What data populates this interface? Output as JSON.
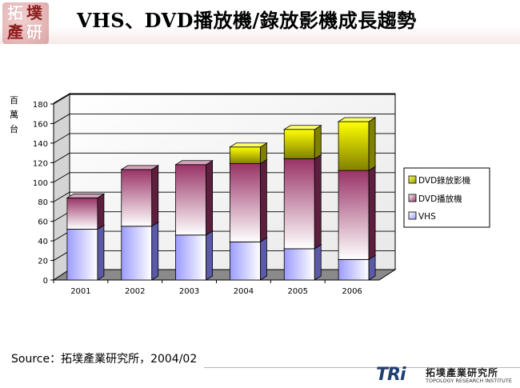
{
  "header": {
    "title": "VHS、DVD播放機/錄放影機成長趨勢",
    "logo_chars": [
      "拓",
      "墣",
      "產",
      "研"
    ]
  },
  "chart_data": {
    "type": "bar",
    "stacked": true,
    "ylabel": "百萬台",
    "ylabel_chars": [
      "百",
      "萬",
      "台"
    ],
    "ylim": [
      0,
      180
    ],
    "yticks": [
      "0",
      "20",
      "40",
      "60",
      "80",
      "100",
      "120",
      "140",
      "160",
      "180"
    ],
    "categories": [
      "2001",
      "2002",
      "2003",
      "2004",
      "2005",
      "2006"
    ],
    "series": [
      {
        "name": "VHS",
        "values": [
          52,
          55,
          46,
          39,
          32,
          21
        ],
        "color": "#9c9cff"
      },
      {
        "name": "DVD播放機",
        "values": [
          32,
          58,
          72,
          80,
          92,
          91
        ],
        "color": "#b3557a"
      },
      {
        "name": "DVD錄放影機",
        "values": [
          0,
          0,
          0,
          17,
          30,
          50
        ],
        "color": "#ffff00"
      }
    ],
    "legend_placement": "right",
    "legend_order": [
      "DVD錄放影機",
      "DVD播放機",
      "VHS"
    ],
    "grid": true
  },
  "footer": {
    "source": "Source：拓墣產業研究所，2004/02",
    "org_mark": "TRi",
    "org_cn": "拓墣產業研究所",
    "org_en": "TOPOLOGY RESEARCH INSTITUTE"
  }
}
